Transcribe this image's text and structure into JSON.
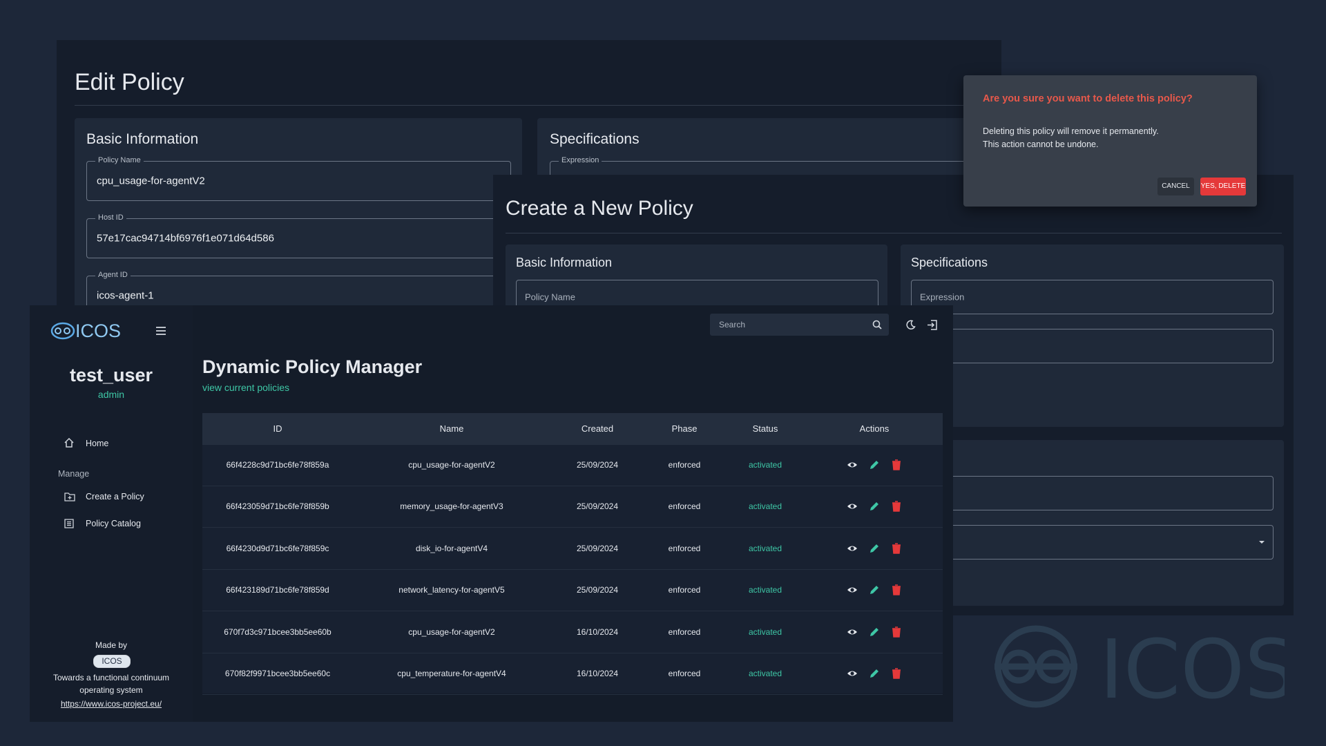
{
  "edit_policy": {
    "title": "Edit Policy",
    "basic_information": {
      "title": "Basic Information",
      "fields": [
        {
          "label": "Policy Name",
          "value": "cpu_usage-for-agentV2"
        },
        {
          "label": "Host ID",
          "value": "57e17cac94714bf6976f1e071d64d586"
        },
        {
          "label": "Agent ID",
          "value": "icos-agent-1"
        }
      ]
    },
    "specifications": {
      "title": "Specifications",
      "field_label": "Expression"
    }
  },
  "create_policy": {
    "title": "Create a New Policy",
    "basic_information": {
      "title": "Basic Information",
      "placeholder": "Policy Name"
    },
    "specifications": {
      "title": "Specifications",
      "placeholder": "Expression"
    }
  },
  "delete_dialog": {
    "title": "Are you sure you want to delete this policy?",
    "message": [
      "Deleting this policy will remove it permanently.",
      "This action cannot be undone."
    ],
    "buttons": [
      "CANCEL",
      "YES, DELETE"
    ]
  },
  "sidebar": {
    "brand": "ICOS",
    "user": "test_user",
    "role": "admin",
    "home": "Home",
    "section": "Manage",
    "nav": [
      "Create a Policy",
      "Policy Catalog"
    ],
    "footer": {
      "made_by": "Made by",
      "badge": "ICOS",
      "tagline": "Towards a functional continuum operating system",
      "link": "https://www.icos-project.eu/"
    }
  },
  "header": {
    "search_placeholder": "Search"
  },
  "main": {
    "title": "Dynamic Policy Manager",
    "link": "view current policies",
    "table": {
      "columns": [
        "ID",
        "Name",
        "Created",
        "Phase",
        "Status",
        "Actions"
      ],
      "rows": [
        [
          "66f4228c9d71bc6fe78f859a",
          "cpu_usage-for-agentV2",
          "25/09/2024",
          "enforced",
          "activated"
        ],
        [
          "66f423059d71bc6fe78f859b",
          "memory_usage-for-agentV3",
          "25/09/2024",
          "enforced",
          "activated"
        ],
        [
          "66f4230d9d71bc6fe78f859c",
          "disk_io-for-agentV4",
          "25/09/2024",
          "enforced",
          "activated"
        ],
        [
          "66f423189d71bc6fe78f859d",
          "network_latency-for-agentV5",
          "25/09/2024",
          "enforced",
          "activated"
        ],
        [
          "670f7d3c971bcee3bb5ee60b",
          "cpu_usage-for-agentV2",
          "16/10/2024",
          "enforced",
          "activated"
        ],
        [
          "670f82f9971bcee3bb5ee60c",
          "cpu_temperature-for-agentV4",
          "16/10/2024",
          "enforced",
          "activated"
        ]
      ]
    }
  },
  "watermark": "ICOS"
}
